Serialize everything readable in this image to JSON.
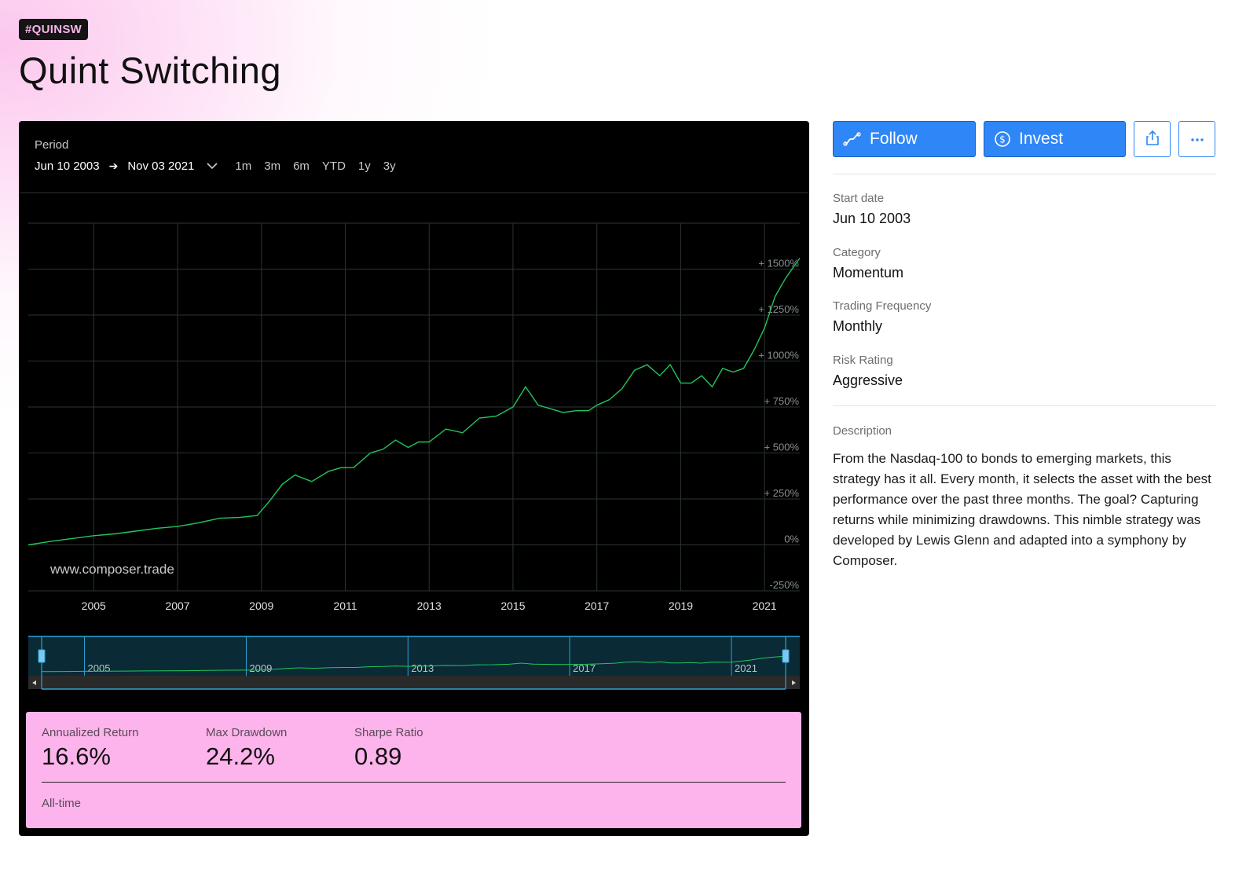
{
  "header": {
    "tag": "#QUINSW",
    "title": "Quint Switching"
  },
  "period": {
    "label": "Period",
    "start": "Jun 10 2003",
    "end": "Nov 03 2021",
    "ranges": [
      "1m",
      "3m",
      "6m",
      "YTD",
      "1y",
      "3y"
    ]
  },
  "chart_data": {
    "type": "line",
    "title": "",
    "xlabel": "",
    "ylabel": "",
    "watermark": "www.composer.trade",
    "xlim": [
      2003.44,
      2021.84
    ],
    "ylim": [
      -250,
      1750
    ],
    "x_ticks": [
      2005,
      2007,
      2009,
      2011,
      2013,
      2015,
      2017,
      2019,
      2021
    ],
    "y_ticks": [
      -250,
      0,
      250,
      500,
      750,
      1000,
      1250,
      1500
    ],
    "y_tick_labels": [
      "-250%",
      "0%",
      "+ 250%",
      "+ 500%",
      "+ 750%",
      "+ 1000%",
      "+ 1250%",
      "+ 1500%"
    ],
    "grid": true,
    "line_color": "#22c55e",
    "series": [
      {
        "x": [
          2003.44,
          2004.0,
          2004.5,
          2005.0,
          2005.5,
          2006.0,
          2006.5,
          2007.0,
          2007.5,
          2008.0,
          2008.5,
          2008.9,
          2009.2,
          2009.5,
          2009.8,
          2010.2,
          2010.6,
          2010.9,
          2011.2,
          2011.6,
          2011.9,
          2012.2,
          2012.5,
          2012.75,
          2013.0,
          2013.4,
          2013.8,
          2014.2,
          2014.6,
          2015.0,
          2015.3,
          2015.6,
          2015.9,
          2016.2,
          2016.5,
          2016.8,
          2017.0,
          2017.3,
          2017.6,
          2017.9,
          2018.2,
          2018.5,
          2018.75,
          2019.0,
          2019.25,
          2019.5,
          2019.75,
          2020.0,
          2020.25,
          2020.5,
          2020.75,
          2021.0,
          2021.25,
          2021.5,
          2021.84
        ],
        "y": [
          0,
          20,
          35,
          50,
          60,
          75,
          90,
          100,
          120,
          145,
          150,
          160,
          240,
          330,
          380,
          345,
          400,
          420,
          420,
          500,
          520,
          570,
          530,
          560,
          560,
          630,
          610,
          690,
          700,
          750,
          860,
          760,
          740,
          720,
          730,
          730,
          760,
          790,
          850,
          950,
          980,
          920,
          980,
          880,
          880,
          920,
          860,
          960,
          940,
          960,
          1060,
          1180,
          1350,
          1450,
          1560
        ]
      }
    ]
  },
  "navigator": {
    "labels": [
      "2005",
      "2009",
      "2013",
      "2017",
      "2021"
    ]
  },
  "stats": {
    "annualized_return": {
      "label": "Annualized Return",
      "value": "16.6%"
    },
    "max_drawdown": {
      "label": "Max Drawdown",
      "value": "24.2%"
    },
    "sharpe_ratio": {
      "label": "Sharpe Ratio",
      "value": "0.89"
    },
    "footer": "All-time"
  },
  "actions": {
    "follow": "Follow",
    "invest": "Invest",
    "share_icon": "share-icon",
    "more_icon": "more-horizontal-icon",
    "accent_color": "#2f86f6"
  },
  "details": {
    "start_date": {
      "label": "Start date",
      "value": "Jun 10 2003"
    },
    "category": {
      "label": "Category",
      "value": "Momentum"
    },
    "trading_frequency": {
      "label": "Trading Frequency",
      "value": "Monthly"
    },
    "risk_rating": {
      "label": "Risk Rating",
      "value": "Aggressive"
    },
    "description": {
      "label": "Description",
      "text": "From the Nasdaq-100 to bonds to emerging markets, this strategy has it all. Every month, it selects the asset with the best performance over the past three months. The goal? Capturing returns while minimizing drawdowns. This nimble strategy was developed by Lewis Glenn and adapted into a symphony by Composer."
    }
  }
}
